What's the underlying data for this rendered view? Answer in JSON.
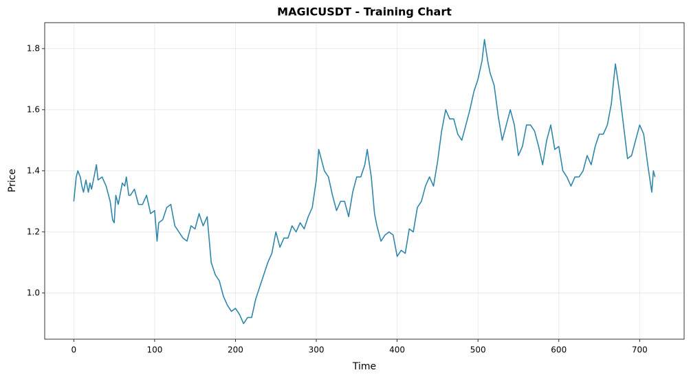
{
  "chart_data": {
    "type": "line",
    "title": "MAGICUSDT - Training Chart",
    "x_label": "Time",
    "y_label": "Price",
    "grid": true,
    "xlim": [
      -36,
      755
    ],
    "xticks": [
      0,
      100,
      200,
      300,
      400,
      500,
      600,
      700
    ],
    "ylim": [
      0.849,
      1.885
    ],
    "yticks": [
      {
        "value": 1.0,
        "label": "1.0"
      },
      {
        "value": 1.2,
        "label": "1.2"
      },
      {
        "value": 1.4,
        "label": "1.4"
      },
      {
        "value": 1.6,
        "label": "1.6"
      },
      {
        "value": 1.8,
        "label": "1.8"
      }
    ],
    "x": [
      0,
      3,
      5,
      8,
      10,
      12,
      15,
      18,
      20,
      22,
      25,
      28,
      30,
      35,
      40,
      45,
      48,
      50,
      52,
      55,
      60,
      63,
      65,
      68,
      70,
      75,
      80,
      85,
      90,
      95,
      100,
      103,
      105,
      110,
      115,
      120,
      125,
      130,
      135,
      140,
      145,
      150,
      155,
      160,
      165,
      168,
      170,
      175,
      180,
      185,
      190,
      195,
      200,
      205,
      210,
      215,
      220,
      225,
      230,
      235,
      240,
      245,
      250,
      255,
      260,
      265,
      270,
      275,
      280,
      285,
      290,
      295,
      300,
      303,
      307,
      310,
      315,
      320,
      325,
      330,
      335,
      340,
      345,
      350,
      355,
      360,
      363,
      368,
      372,
      375,
      380,
      385,
      390,
      395,
      400,
      405,
      410,
      415,
      420,
      425,
      430,
      435,
      440,
      445,
      450,
      455,
      460,
      465,
      470,
      475,
      480,
      485,
      490,
      495,
      500,
      505,
      508,
      512,
      515,
      520,
      525,
      530,
      535,
      540,
      545,
      550,
      555,
      560,
      565,
      570,
      575,
      580,
      585,
      590,
      595,
      600,
      605,
      610,
      615,
      620,
      625,
      630,
      635,
      640,
      645,
      650,
      655,
      660,
      665,
      668,
      670,
      675,
      680,
      685,
      690,
      695,
      700,
      705,
      710,
      715,
      717,
      719
    ],
    "series": [
      {
        "name": "MAGICUSDT",
        "color": "#2e86ab",
        "values": [
          1.3,
          1.38,
          1.4,
          1.38,
          1.35,
          1.33,
          1.37,
          1.33,
          1.36,
          1.34,
          1.38,
          1.42,
          1.37,
          1.38,
          1.35,
          1.3,
          1.24,
          1.23,
          1.32,
          1.29,
          1.36,
          1.35,
          1.38,
          1.32,
          1.32,
          1.34,
          1.29,
          1.29,
          1.32,
          1.26,
          1.27,
          1.17,
          1.23,
          1.24,
          1.28,
          1.29,
          1.22,
          1.2,
          1.18,
          1.17,
          1.22,
          1.21,
          1.26,
          1.22,
          1.25,
          1.16,
          1.1,
          1.06,
          1.04,
          0.99,
          0.96,
          0.94,
          0.95,
          0.93,
          0.9,
          0.92,
          0.92,
          0.98,
          1.02,
          1.06,
          1.1,
          1.13,
          1.2,
          1.15,
          1.18,
          1.18,
          1.22,
          1.2,
          1.23,
          1.21,
          1.25,
          1.28,
          1.37,
          1.47,
          1.43,
          1.4,
          1.38,
          1.32,
          1.27,
          1.3,
          1.3,
          1.25,
          1.33,
          1.38,
          1.38,
          1.42,
          1.47,
          1.38,
          1.26,
          1.22,
          1.17,
          1.19,
          1.2,
          1.19,
          1.12,
          1.14,
          1.13,
          1.21,
          1.2,
          1.28,
          1.3,
          1.35,
          1.38,
          1.35,
          1.43,
          1.53,
          1.6,
          1.57,
          1.57,
          1.52,
          1.5,
          1.55,
          1.6,
          1.66,
          1.7,
          1.76,
          1.83,
          1.76,
          1.72,
          1.68,
          1.58,
          1.5,
          1.55,
          1.6,
          1.55,
          1.45,
          1.48,
          1.55,
          1.55,
          1.53,
          1.48,
          1.42,
          1.5,
          1.55,
          1.47,
          1.48,
          1.4,
          1.38,
          1.35,
          1.38,
          1.38,
          1.4,
          1.45,
          1.42,
          1.48,
          1.52,
          1.52,
          1.55,
          1.62,
          1.7,
          1.75,
          1.66,
          1.55,
          1.44,
          1.45,
          1.5,
          1.55,
          1.52,
          1.42,
          1.33,
          1.4,
          1.38
        ]
      }
    ]
  }
}
